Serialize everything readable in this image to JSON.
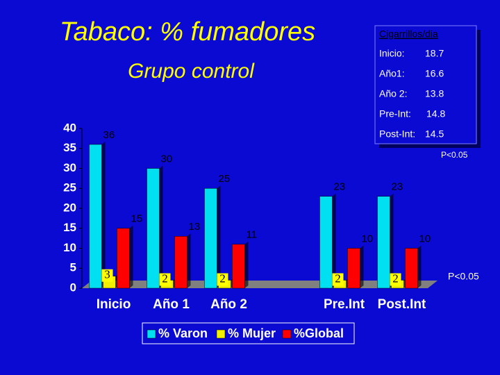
{
  "chart_data": {
    "type": "bar",
    "title": "Tabaco: % fumadores",
    "subtitle": "Grupo control",
    "categories": [
      "Inicio",
      "Año 1",
      "Año 2",
      null,
      "Pre.Int",
      "Post.Int"
    ],
    "series": [
      {
        "name": "% Varon",
        "color": "#00e0f0",
        "values": [
          36,
          30,
          25,
          null,
          23,
          23
        ]
      },
      {
        "name": "% Mujer",
        "color": "#f0f000",
        "values": [
          3,
          2,
          2,
          null,
          2,
          2
        ]
      },
      {
        "name": "%Global",
        "color": "#ff0000",
        "values": [
          15,
          13,
          11,
          null,
          10,
          10
        ]
      }
    ],
    "ylim": [
      0,
      40
    ],
    "yticks": [
      0,
      5,
      10,
      15,
      20,
      25,
      30,
      35,
      40
    ],
    "grid": false,
    "legend": "bottom",
    "annotations": [
      "P<0.05",
      "P<0.05"
    ],
    "info_box": {
      "title": "Cigarrillos/dia",
      "rows": [
        [
          "Inicio:",
          18.7
        ],
        [
          "Año1:",
          16.6
        ],
        [
          "Año 2:",
          13.8
        ],
        [
          "Pre-Int:",
          14.8
        ],
        [
          "Post-Int:",
          14.5
        ]
      ]
    }
  }
}
